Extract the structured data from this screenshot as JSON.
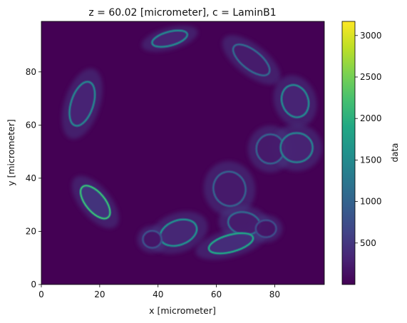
{
  "chart_data": {
    "type": "heatmap",
    "title": "z = 60.02 [micrometer], c = LaminB1",
    "xlabel": "x [micrometer]",
    "ylabel": "y [micrometer]",
    "xlim": [
      0,
      97
    ],
    "ylim": [
      0,
      99
    ],
    "xticks": [
      0,
      20,
      40,
      60,
      80
    ],
    "yticks": [
      0,
      20,
      40,
      60,
      80
    ],
    "colorbar": {
      "label": "data",
      "range": [
        0,
        3170
      ],
      "ticks": [
        500,
        1000,
        1500,
        2000,
        2500,
        3000
      ],
      "colormap": "viridis"
    },
    "background_level": 80,
    "nuclei": [
      {
        "cx": 44,
        "cy": 92.5,
        "rx": 6.2,
        "ry": 2.6,
        "rot": 15,
        "intensity": 1500
      },
      {
        "cx": 72,
        "cy": 84.5,
        "rx": 7.5,
        "ry": 3.6,
        "rot": -38,
        "intensity": 1100
      },
      {
        "cx": 87,
        "cy": 69,
        "rx": 4.5,
        "ry": 6.2,
        "rot": 20,
        "intensity": 1500
      },
      {
        "cx": 14,
        "cy": 68,
        "rx": 3.8,
        "ry": 8.6,
        "rot": -18,
        "intensity": 1450
      },
      {
        "cx": 78.5,
        "cy": 51,
        "rx": 4.8,
        "ry": 5.5,
        "rot": 0,
        "intensity": 1000
      },
      {
        "cx": 87.5,
        "cy": 51.5,
        "rx": 5.5,
        "ry": 5.5,
        "rot": 0,
        "intensity": 1400
      },
      {
        "cx": 64.5,
        "cy": 36,
        "rx": 5.5,
        "ry": 6.5,
        "rot": 15,
        "intensity": 1000
      },
      {
        "cx": 18.5,
        "cy": 31,
        "rx": 6.8,
        "ry": 3.6,
        "rot": -50,
        "intensity": 2200
      },
      {
        "cx": 69.5,
        "cy": 23,
        "rx": 5.5,
        "ry": 4.2,
        "rot": -10,
        "intensity": 1100
      },
      {
        "cx": 47,
        "cy": 19.5,
        "rx": 6.5,
        "ry": 4.6,
        "rot": 20,
        "intensity": 1600
      },
      {
        "cx": 65,
        "cy": 15.5,
        "rx": 7.8,
        "ry": 3.2,
        "rot": 15,
        "intensity": 1900
      },
      {
        "cx": 38,
        "cy": 17,
        "rx": 3.2,
        "ry": 3.2,
        "rot": 0,
        "intensity": 800
      },
      {
        "cx": 77,
        "cy": 21,
        "rx": 3.5,
        "ry": 3.2,
        "rot": 0,
        "intensity": 750
      }
    ]
  }
}
